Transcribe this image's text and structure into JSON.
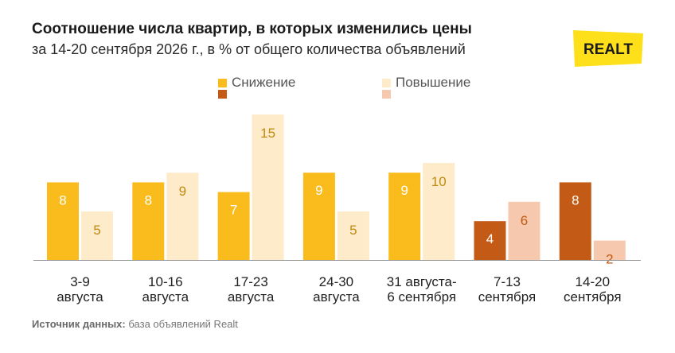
{
  "header": {
    "title": "Соотношение числа квартир, в которых изменились цены",
    "subtitle": "за 14-20 сентября 2026 г., в % от общего количества объявлений"
  },
  "logo": {
    "text": "REALT"
  },
  "legend": {
    "decrease_label": "Снижение",
    "increase_label": "Повышение"
  },
  "source": {
    "label": "Источник данных:",
    "text": "база объявлений Realt"
  },
  "colors": {
    "decrease": "#F9BC1C",
    "increase": "#FDEBC9",
    "decrease_current": "#C35A15",
    "increase_current": "#F6C8AD",
    "value_on_decrease": "#ffffff",
    "value_on_increase": "#C08A10",
    "value_on_increase_current": "#C35A15",
    "logo": "#FDE01A",
    "axis": "#999999"
  },
  "chart_data": {
    "type": "bar",
    "categories": [
      [
        "3-9",
        "августа"
      ],
      [
        "10-16",
        "августа"
      ],
      [
        "17-23",
        "августа"
      ],
      [
        "24-30",
        "августа"
      ],
      [
        "31 августа-",
        "6 сентября"
      ],
      [
        "7-13",
        "сентября"
      ],
      [
        "14-20",
        "сентября"
      ]
    ],
    "series": [
      {
        "name": "Снижение",
        "values": [
          8,
          8,
          7,
          9,
          9,
          4,
          8
        ]
      },
      {
        "name": "Повышение",
        "values": [
          5,
          9,
          15,
          5,
          10,
          6,
          2
        ]
      }
    ],
    "highlighted_categories": [
      5,
      6
    ],
    "ylim": [
      0,
      15
    ],
    "grid": false,
    "legend_position": "top"
  }
}
